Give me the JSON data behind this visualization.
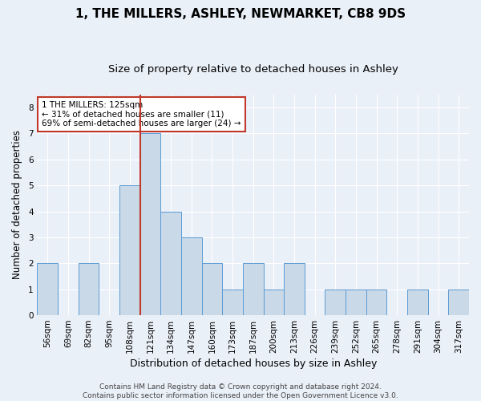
{
  "title": "1, THE MILLERS, ASHLEY, NEWMARKET, CB8 9DS",
  "subtitle": "Size of property relative to detached houses in Ashley",
  "xlabel": "Distribution of detached houses by size in Ashley",
  "ylabel": "Number of detached properties",
  "categories": [
    "56sqm",
    "69sqm",
    "82sqm",
    "95sqm",
    "108sqm",
    "121sqm",
    "134sqm",
    "147sqm",
    "160sqm",
    "173sqm",
    "187sqm",
    "200sqm",
    "213sqm",
    "226sqm",
    "239sqm",
    "252sqm",
    "265sqm",
    "278sqm",
    "291sqm",
    "304sqm",
    "317sqm"
  ],
  "values": [
    2,
    0,
    2,
    0,
    5,
    7,
    4,
    3,
    2,
    1,
    2,
    1,
    2,
    0,
    1,
    1,
    1,
    0,
    1,
    0,
    1
  ],
  "bar_color": "#c9d9e8",
  "bar_edge_color": "#5b9bd5",
  "vline_color": "#c0392b",
  "vline_index": 4.5,
  "annotation_text": "1 THE MILLERS: 125sqm\n← 31% of detached houses are smaller (11)\n69% of semi-detached houses are larger (24) →",
  "annotation_box_color": "white",
  "annotation_box_edge": "#c0392b",
  "ylim": [
    0,
    8.5
  ],
  "yticks": [
    0,
    1,
    2,
    3,
    4,
    5,
    6,
    7,
    8
  ],
  "background_color": "#eaf0f8",
  "plot_bg_color": "#eaf0f8",
  "grid_color": "white",
  "footer": "Contains HM Land Registry data © Crown copyright and database right 2024.\nContains public sector information licensed under the Open Government Licence v3.0.",
  "title_fontsize": 11,
  "subtitle_fontsize": 9.5,
  "xlabel_fontsize": 9,
  "ylabel_fontsize": 8.5,
  "tick_fontsize": 7.5,
  "annotation_fontsize": 7.5,
  "footer_fontsize": 6.5
}
